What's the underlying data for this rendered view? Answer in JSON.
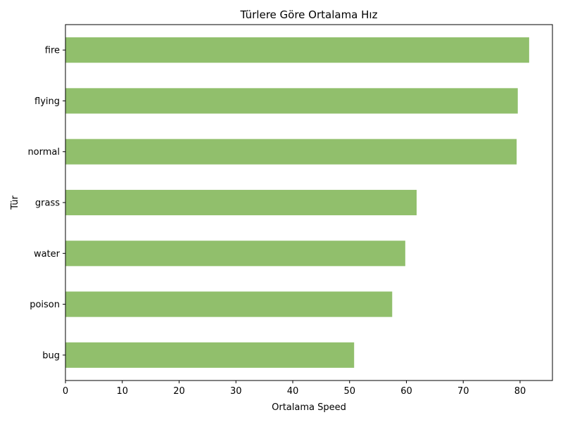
{
  "chart_data": {
    "type": "bar",
    "orientation": "horizontal",
    "title": "Türlere Göre Ortalama Hız",
    "xlabel": "Ortalama Speed",
    "ylabel": "Tür",
    "categories": [
      "fire",
      "flying",
      "normal",
      "grass",
      "water",
      "poison",
      "bug"
    ],
    "values": [
      81.6,
      79.6,
      79.4,
      61.8,
      59.8,
      57.5,
      50.8
    ],
    "xlim": [
      0,
      85.7
    ],
    "xticks": [
      0,
      10,
      20,
      30,
      40,
      50,
      60,
      70,
      80
    ],
    "bar_color": "#91bf6c",
    "grid": false,
    "legend": "none"
  }
}
